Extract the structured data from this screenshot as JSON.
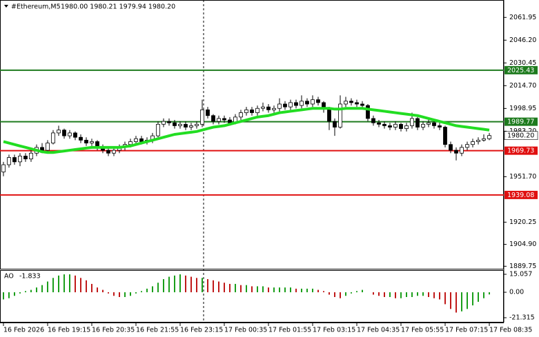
{
  "chart_data": {
    "type": "candlestick",
    "title": "#Ethereum,M5",
    "quote": "1980.00 1980.21 1979.94 1980.20",
    "categories": [
      "16 Feb 2026",
      null,
      null,
      null,
      null,
      null,
      null,
      null,
      "16 Feb 19:15",
      null,
      null,
      null,
      null,
      null,
      null,
      null,
      "16 Feb 20:35",
      null,
      null,
      null,
      null,
      null,
      null,
      null,
      "16 Feb 21:55",
      null,
      null,
      null,
      null,
      null,
      null,
      null,
      "16 Feb 23:15",
      null,
      null,
      null,
      null,
      null,
      null,
      null,
      "17 Feb 00:35",
      null,
      null,
      null,
      null,
      null,
      null,
      null,
      "17 Feb 01:55",
      null,
      null,
      null,
      null,
      null,
      null,
      null,
      "17 Feb 03:15",
      null,
      null,
      null,
      null,
      null,
      null,
      null,
      "17 Feb 04:35",
      null,
      null,
      null,
      null,
      null,
      null,
      null,
      "17 Feb 05:55",
      null,
      null,
      null,
      null,
      null,
      null,
      null,
      "17 Feb 07:15",
      null,
      null,
      null,
      null,
      null,
      null,
      null,
      "17 Feb 08:35"
    ],
    "open": [
      1955,
      1960,
      1965,
      1962,
      1966,
      1964,
      1968,
      1972,
      1970,
      1975,
      1982,
      1984,
      1980,
      1982,
      1979,
      1977,
      1975,
      1976,
      1972,
      1970,
      1968,
      1970,
      1972,
      1974,
      1976,
      1978,
      1976,
      1977,
      1980,
      1988,
      1990,
      1989,
      1987,
      1988,
      1986,
      1987,
      1988,
      1998,
      1994,
      1990,
      1992,
      1991,
      1989,
      1993,
      1996,
      1998,
      1996,
      1999,
      2000,
      1998,
      1999,
      2002,
      2000,
      2003,
      2001,
      2004,
      2002,
      2005,
      2003,
      1999,
      1990,
      1986,
      2002,
      2004,
      2003,
      2002,
      2001,
      1992,
      1989,
      1988,
      1987,
      1986,
      1988,
      1985,
      1987,
      1992,
      1986,
      1988,
      1989,
      1987,
      1986,
      1974,
      1970,
      1968,
      1972,
      1974,
      1976,
      1977,
      1978
    ],
    "high": [
      1962,
      1967,
      1967,
      1968,
      1968,
      1970,
      1974,
      1975,
      1977,
      1984,
      1987,
      1985,
      1984,
      1983,
      1981,
      1979,
      1978,
      1977,
      1974,
      1972,
      1972,
      1974,
      1976,
      1978,
      1980,
      1980,
      1979,
      1982,
      1990,
      1992,
      1992,
      1991,
      1990,
      1990,
      1989,
      1990,
      2005,
      2000,
      1995,
      1994,
      1994,
      1993,
      1995,
      1998,
      2000,
      2000,
      2001,
      2003,
      2002,
      2001,
      2006,
      2004,
      2005,
      2005,
      2008,
      2006,
      2008,
      2007,
      2004,
      2000,
      1992,
      2008,
      2007,
      2006,
      2005,
      2004,
      2002,
      1994,
      1991,
      1990,
      1989,
      1990,
      1989,
      1989,
      1996,
      1993,
      1990,
      1991,
      1991,
      1989,
      1987,
      1976,
      1972,
      1974,
      1976,
      1978,
      1979,
      1981,
      1982
    ],
    "low": [
      1952,
      1958,
      1960,
      1959,
      1962,
      1962,
      1966,
      1968,
      1969,
      1974,
      1980,
      1978,
      1978,
      1977,
      1975,
      1973,
      1973,
      1970,
      1968,
      1966,
      1966,
      1968,
      1970,
      1972,
      1974,
      1974,
      1974,
      1975,
      1979,
      1986,
      1987,
      1985,
      1985,
      1984,
      1984,
      1985,
      1986,
      1992,
      1988,
      1988,
      1989,
      1987,
      1988,
      1991,
      1994,
      1994,
      1994,
      1997,
      1996,
      1996,
      1997,
      1998,
      1998,
      1999,
      1999,
      2000,
      2000,
      2001,
      1996,
      1984,
      1980,
      1985,
      2000,
      2001,
      2000,
      1999,
      1990,
      1987,
      1986,
      1985,
      1984,
      1984,
      1983,
      1983,
      1985,
      1984,
      1984,
      1986,
      1985,
      1984,
      1972,
      1968,
      1963,
      1966,
      1970,
      1972,
      1974,
      1976,
      1977
    ],
    "close": [
      1960,
      1965,
      1962,
      1966,
      1964,
      1968,
      1972,
      1970,
      1975,
      1982,
      1984,
      1980,
      1982,
      1979,
      1977,
      1975,
      1976,
      1972,
      1970,
      1968,
      1970,
      1972,
      1974,
      1976,
      1978,
      1976,
      1977,
      1980,
      1988,
      1990,
      1989,
      1987,
      1988,
      1986,
      1987,
      1988,
      1998,
      1994,
      1990,
      1992,
      1991,
      1989,
      1993,
      1996,
      1998,
      1996,
      1999,
      2000,
      1998,
      1999,
      2002,
      2000,
      2003,
      2001,
      2004,
      2002,
      2005,
      2003,
      1999,
      1990,
      1986,
      2002,
      2004,
      2003,
      2002,
      2001,
      1992,
      1989,
      1988,
      1987,
      1986,
      1988,
      1985,
      1987,
      1992,
      1986,
      1988,
      1989,
      1987,
      1986,
      1974,
      1970,
      1968,
      1972,
      1974,
      1976,
      1977,
      1978,
      1980.2
    ],
    "ma": [
      1976,
      1975,
      1974,
      1973,
      1972,
      1971,
      1970,
      1969,
      1968.5,
      1968.5,
      1969,
      1969.5,
      1970,
      1970.5,
      1971,
      1971.5,
      1972,
      1972,
      1972,
      1972,
      1972,
      1972,
      1972.5,
      1973,
      1974,
      1975,
      1976,
      1977,
      1978,
      1979,
      1980,
      1981,
      1981.5,
      1982,
      1982.5,
      1983,
      1984,
      1985,
      1986,
      1986.5,
      1987,
      1988,
      1989,
      1990,
      1991,
      1992,
      1993,
      1993.5,
      1994,
      1995,
      1996,
      1996.5,
      1997,
      1997.5,
      1998,
      1998.5,
      1999,
      1999,
      1999,
      1999,
      1998.5,
      1998.5,
      1999,
      1999,
      1999,
      1999,
      1998.5,
      1998,
      1997.5,
      1997,
      1996.5,
      1996,
      1995.5,
      1995,
      1994.5,
      1994,
      1993,
      1992,
      1991,
      1990,
      1989,
      1988,
      1987,
      1986.5,
      1986,
      1985.5,
      1985,
      1984.5,
      1984
    ],
    "ma_color": "#22dd22",
    "ylim": [
      1888,
      2074
    ],
    "yticks": [
      2061.95,
      {
        "value": 2046.2,
        "label": "2046.20"
      },
      2030.45,
      {
        "value": 2014.7,
        "label": "2014.70"
      },
      1998.95,
      {
        "value": 1983.2,
        "label": "1983.20"
      },
      {
        "value": 1951.7,
        "label": "1951.70"
      },
      1920.25,
      {
        "value": 1904.9,
        "label": "1904.90"
      },
      1889.75
    ],
    "levels": [
      {
        "value": 2025.43,
        "color": "#1e7b1e"
      },
      {
        "value": 1989.77,
        "color": "#1e7b1e"
      },
      {
        "value": 1969.73,
        "color": "#e01010"
      },
      {
        "value": 1939.08,
        "color": "#e01010"
      }
    ],
    "current": {
      "value": 1980.2,
      "label": "1980.20"
    },
    "indicator": {
      "type": "bar",
      "label": "AO",
      "values": [
        -6,
        -5,
        -3,
        -1,
        1,
        2,
        4,
        6,
        9,
        12,
        14,
        15,
        15,
        14,
        12,
        10,
        7,
        4,
        2,
        -1,
        -3,
        -4,
        -4,
        -3,
        -1,
        1,
        3,
        5,
        8,
        11,
        13,
        14,
        15,
        14,
        13,
        12,
        12,
        11,
        10,
        9,
        8,
        7,
        7,
        6,
        6,
        5,
        5,
        5,
        4,
        4,
        4,
        4,
        4,
        3,
        3,
        3,
        3,
        2,
        1,
        -2,
        -4,
        -5,
        -3,
        -1,
        1,
        2,
        0,
        -2,
        -3,
        -4,
        -4,
        -5,
        -5,
        -4,
        -4,
        -3,
        -3,
        -4,
        -5,
        -6,
        -10,
        -14,
        -17,
        -16,
        -14,
        -11,
        -8,
        -5,
        -1.833
      ],
      "up_color": "#1a9e1a",
      "down_color": "#c01818",
      "ylim": [
        -24.78,
        18.52
      ],
      "yticks": [
        15.057,
        {
          "value": 0,
          "label": "0.00"
        },
        -21.315
      ]
    }
  }
}
